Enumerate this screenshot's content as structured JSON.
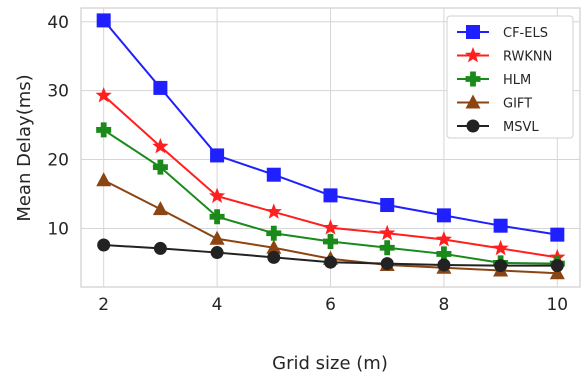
{
  "chart_data": {
    "type": "line",
    "xlabel": "Grid size (m)",
    "ylabel": "Mean Delay(ms)",
    "xlim": [
      1.6,
      10.4
    ],
    "ylim": [
      1.5,
      42
    ],
    "xticks": [
      2,
      4,
      6,
      8,
      10
    ],
    "yticks": [
      10,
      20,
      30,
      40
    ],
    "grid": true,
    "legend_position": "top-right",
    "x": [
      2,
      3,
      4,
      5,
      6,
      7,
      8,
      9,
      10
    ],
    "series": [
      {
        "name": "CF-ELS",
        "color": "#1f1fff",
        "marker": "square",
        "values": [
          40.2,
          30.4,
          20.6,
          17.8,
          14.8,
          13.4,
          11.9,
          10.4,
          9.1
        ]
      },
      {
        "name": "RWKNN",
        "color": "#ff1f1f",
        "marker": "star",
        "values": [
          29.3,
          21.9,
          14.7,
          12.4,
          10.1,
          9.3,
          8.4,
          7.1,
          5.8
        ]
      },
      {
        "name": "HLM",
        "color": "#1a8a1a",
        "marker": "plus",
        "values": [
          24.3,
          18.9,
          11.7,
          9.3,
          8.1,
          7.2,
          6.3,
          5.0,
          4.9
        ]
      },
      {
        "name": "GIFT",
        "color": "#8b4513",
        "marker": "triangle",
        "values": [
          17.0,
          12.8,
          8.5,
          7.2,
          5.6,
          4.7,
          4.3,
          3.9,
          3.5
        ]
      },
      {
        "name": "MSVL",
        "color": "#222222",
        "marker": "circle",
        "values": [
          7.6,
          7.1,
          6.5,
          5.8,
          5.1,
          4.9,
          4.7,
          4.6,
          4.6
        ]
      }
    ]
  }
}
